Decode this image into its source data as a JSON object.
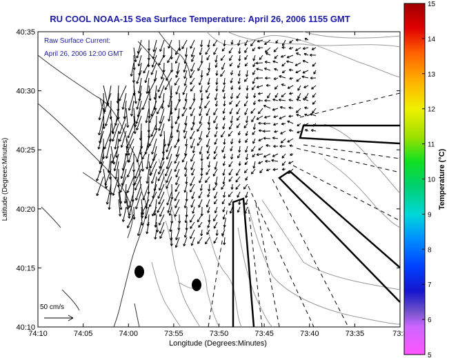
{
  "title": "RU COOL  NOAA-15  Sea Surface Temperature:  April 26, 2006 1155 GMT",
  "legend_top": "Raw Surface Current:",
  "legend_bottom": "April 26, 2006 12:00 GMT",
  "scale_label": "50 cm/s",
  "x_axis_label": "Longitude (Degrees:Minutes)",
  "y_axis_label": "Latitude (Degrees:Minutes)",
  "x_ticks": [
    "74:10",
    "74:05",
    "74:00",
    "73:55",
    "73:50",
    "73:45",
    "73:40",
    "73:35",
    "73:3"
  ],
  "y_ticks": [
    "40:35",
    "40:30",
    "40:25",
    "40:20",
    "40:15",
    "40:10"
  ],
  "colorbar_label": "Temperature (°C)",
  "colorbar_ticks": [
    "15",
    "14",
    "13",
    "12",
    "11",
    "10",
    "9",
    "8",
    "7",
    "6",
    "5"
  ],
  "colors": {
    "title": "#1a1aa6",
    "legend_text": "#1a1aa6",
    "land_outline": "#333333",
    "isobaths": "#9a9a9a",
    "vectors": "#000000"
  }
}
